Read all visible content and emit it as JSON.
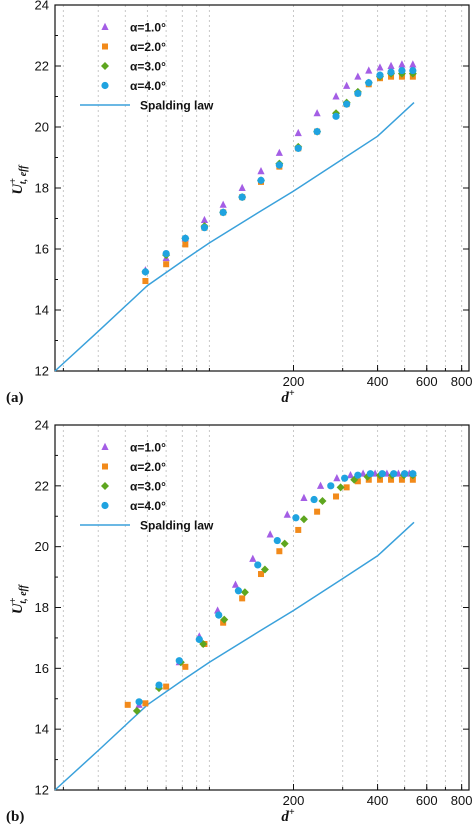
{
  "colors": {
    "alpha1": "#a45ee5",
    "alpha2": "#f28a1a",
    "alpha3": "#5ea61f",
    "alpha4": "#1fa3e0",
    "spalding": "#3aa1db",
    "axis": "#111111",
    "grid": "#c8c8c8"
  },
  "chart_data": [
    {
      "panel": "(a)",
      "type": "scatter",
      "xlabel": "d+",
      "ylabel": "U+t, eff",
      "xscale": "log",
      "xlim": [
        28,
        850
      ],
      "ylim": [
        12,
        24
      ],
      "xtick_labels": [
        "200",
        "400",
        "600",
        "800"
      ],
      "ytick_labels": [
        "12",
        "14",
        "16",
        "18",
        "20",
        "22",
        "24"
      ],
      "grid": "vertical-dashed",
      "legend": "top-left",
      "series": [
        {
          "name": "α=1.0°",
          "marker": "triangle",
          "x": [
            59,
            70,
            82,
            96,
            112,
            131,
            153,
            178,
            208,
            243,
            284,
            310,
            340,
            372,
            408,
            447,
            489,
            535
          ],
          "y": [
            15.3,
            15.7,
            16.35,
            16.95,
            17.45,
            18.0,
            18.55,
            19.15,
            19.8,
            20.45,
            21.0,
            21.35,
            21.65,
            21.85,
            21.95,
            22.0,
            22.05,
            22.05
          ]
        },
        {
          "name": "α=2.0°",
          "marker": "square",
          "x": [
            59,
            70,
            82,
            96,
            112,
            131,
            153,
            178,
            208,
            243,
            284,
            310,
            340,
            372,
            408,
            447,
            489,
            535
          ],
          "y": [
            14.95,
            15.5,
            16.15,
            16.7,
            17.2,
            17.7,
            18.2,
            18.7,
            19.3,
            19.85,
            20.4,
            20.75,
            21.1,
            21.4,
            21.6,
            21.65,
            21.65,
            21.65
          ]
        },
        {
          "name": "α=3.0°",
          "marker": "diamond",
          "x": [
            59,
            70,
            82,
            96,
            112,
            131,
            153,
            178,
            208,
            243,
            284,
            310,
            340,
            372,
            408,
            447,
            489,
            535
          ],
          "y": [
            15.25,
            15.8,
            16.35,
            16.75,
            17.2,
            17.7,
            18.25,
            18.8,
            19.35,
            19.85,
            20.45,
            20.8,
            21.15,
            21.45,
            21.65,
            21.75,
            21.75,
            21.75
          ]
        },
        {
          "name": "α=4.0°",
          "marker": "circle",
          "x": [
            59,
            70,
            82,
            96,
            112,
            131,
            153,
            178,
            208,
            243,
            284,
            310,
            340,
            372,
            408,
            447,
            489,
            535
          ],
          "y": [
            15.25,
            15.85,
            16.35,
            16.7,
            17.2,
            17.7,
            18.25,
            18.75,
            19.3,
            19.85,
            20.35,
            20.75,
            21.1,
            21.45,
            21.7,
            21.8,
            21.85,
            21.85
          ]
        },
        {
          "name": "Spalding law",
          "marker": "line",
          "x": [
            28,
            40,
            60,
            80,
            100,
            150,
            200,
            300,
            400,
            540
          ],
          "y": [
            12.0,
            13.3,
            14.8,
            15.6,
            16.2,
            17.2,
            17.9,
            18.95,
            19.7,
            20.8
          ]
        }
      ]
    },
    {
      "panel": "(b)",
      "type": "scatter",
      "xlabel": "d+",
      "ylabel": "U+t, eff",
      "xscale": "log",
      "xlim": [
        28,
        850
      ],
      "ylim": [
        12,
        24
      ],
      "xtick_labels": [
        "200",
        "400",
        "600",
        "800"
      ],
      "ytick_labels": [
        "12",
        "14",
        "16",
        "18",
        "20",
        "22",
        "24"
      ],
      "grid": "vertical-dashed",
      "legend": "top-left",
      "series": [
        {
          "name": "α=1.0°",
          "marker": "triangle",
          "x": [
            56,
            66,
            78,
            92,
            107,
            124,
            143,
            165,
            190,
            218,
            250,
            286,
            320,
            355,
            392,
            432,
            475,
            520,
            535
          ],
          "y": [
            14.8,
            15.4,
            16.2,
            17.05,
            17.9,
            18.75,
            19.6,
            20.4,
            21.05,
            21.6,
            22.0,
            22.25,
            22.35,
            22.4,
            22.4,
            22.4,
            22.4,
            22.4,
            22.4
          ]
        },
        {
          "name": "α=2.0°",
          "marker": "square",
          "x": [
            51,
            59,
            70,
            82,
            96,
            112,
            131,
            153,
            178,
            208,
            243,
            284,
            310,
            340,
            372,
            408,
            447,
            489,
            535
          ],
          "y": [
            14.8,
            14.85,
            15.4,
            16.05,
            16.8,
            17.5,
            18.3,
            19.1,
            19.85,
            20.55,
            21.15,
            21.65,
            21.95,
            22.15,
            22.2,
            22.2,
            22.2,
            22.2,
            22.2
          ]
        },
        {
          "name": "α=3.0°",
          "marker": "diamond",
          "x": [
            55,
            66,
            79,
            95,
            113,
            134,
            158,
            186,
            218,
            254,
            295,
            330,
            368,
            408,
            451,
            497,
            535
          ],
          "y": [
            14.6,
            15.35,
            16.2,
            16.8,
            17.6,
            18.5,
            19.25,
            20.1,
            20.9,
            21.5,
            21.95,
            22.2,
            22.3,
            22.35,
            22.35,
            22.35,
            22.35
          ]
        },
        {
          "name": "α=4.0°",
          "marker": "circle",
          "x": [
            56,
            66,
            78,
            92,
            108,
            127,
            149,
            175,
            204,
            237,
            272,
            305,
            340,
            377,
            416,
            457,
            500,
            535
          ],
          "y": [
            14.9,
            15.45,
            16.25,
            16.95,
            17.75,
            18.55,
            19.4,
            20.2,
            20.95,
            21.55,
            22.0,
            22.25,
            22.35,
            22.4,
            22.4,
            22.4,
            22.4,
            22.4
          ]
        },
        {
          "name": "Spalding law",
          "marker": "line",
          "x": [
            28,
            40,
            60,
            80,
            100,
            150,
            200,
            300,
            400,
            540
          ],
          "y": [
            12.0,
            13.3,
            14.8,
            15.6,
            16.2,
            17.2,
            17.9,
            18.95,
            19.7,
            20.8
          ]
        }
      ]
    }
  ]
}
